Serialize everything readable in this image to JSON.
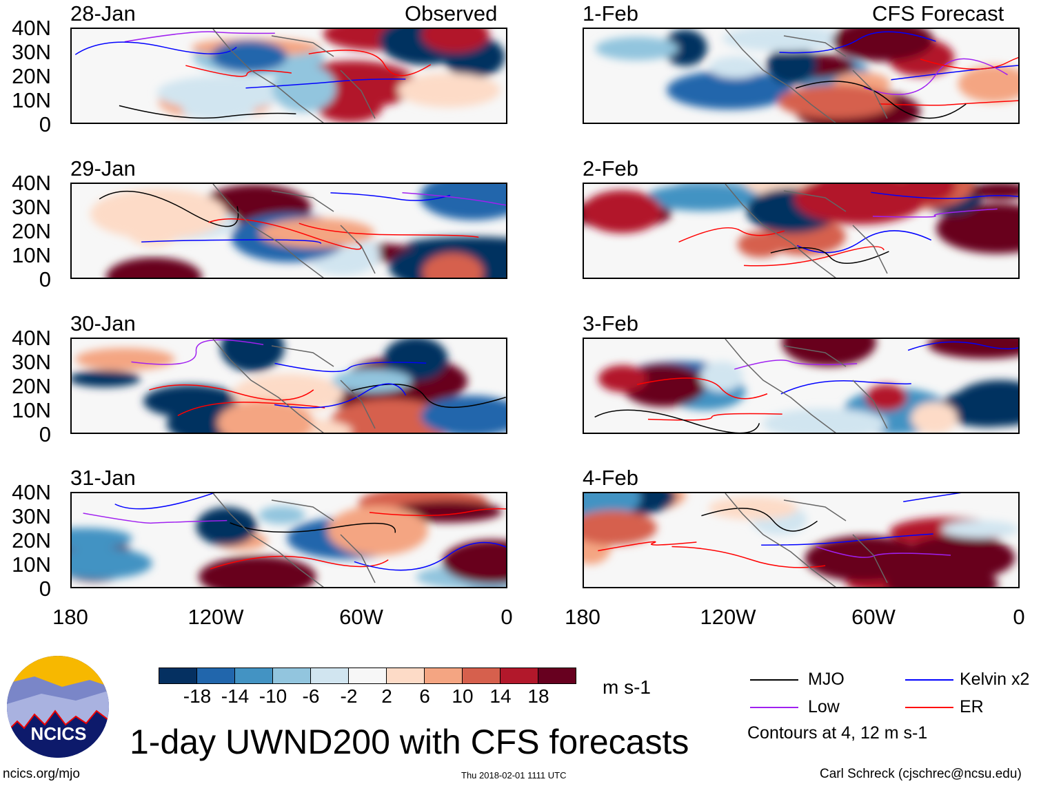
{
  "left_header_right": "Observed",
  "right_header_right": "CFS Forecast",
  "panels_left": [
    {
      "date": "28-Jan"
    },
    {
      "date": "29-Jan"
    },
    {
      "date": "30-Jan"
    },
    {
      "date": "31-Jan"
    }
  ],
  "panels_right": [
    {
      "date": "1-Feb"
    },
    {
      "date": "2-Feb"
    },
    {
      "date": "3-Feb"
    },
    {
      "date": "4-Feb"
    }
  ],
  "lat_labels": [
    "40N",
    "30N",
    "20N",
    "10N",
    "0"
  ],
  "lon_labels": [
    "180",
    "120W",
    "60W",
    "0"
  ],
  "colorbar": {
    "colors": [
      "#053061",
      "#2166ac",
      "#4393c3",
      "#92c5de",
      "#d1e5f0",
      "#f7f7f7",
      "#fddbc7",
      "#f4a582",
      "#d6604d",
      "#b2182b",
      "#67001f"
    ],
    "labels": [
      "-18",
      "-14",
      "-10",
      "-6",
      "-2",
      "2",
      "6",
      "10",
      "14",
      "18"
    ],
    "units": "m s-1"
  },
  "legend": {
    "items": [
      {
        "label": "MJO",
        "color": "#000000"
      },
      {
        "label": "Kelvin x2",
        "color": "#0000ff"
      },
      {
        "label": "Low",
        "color": "#a020f0"
      },
      {
        "label": "ER",
        "color": "#ff0000"
      }
    ],
    "note": "Contours at 4, 12 m s-1"
  },
  "logo_text": "NCICS",
  "title": "1-day UWND200 with CFS forecasts",
  "footer": {
    "url": "ncics.org/mjo",
    "timestamp": "Thu 2018-02-01 1111 UTC",
    "credit": "Carl Schreck (cjschrec@ncsu.edu)"
  }
}
